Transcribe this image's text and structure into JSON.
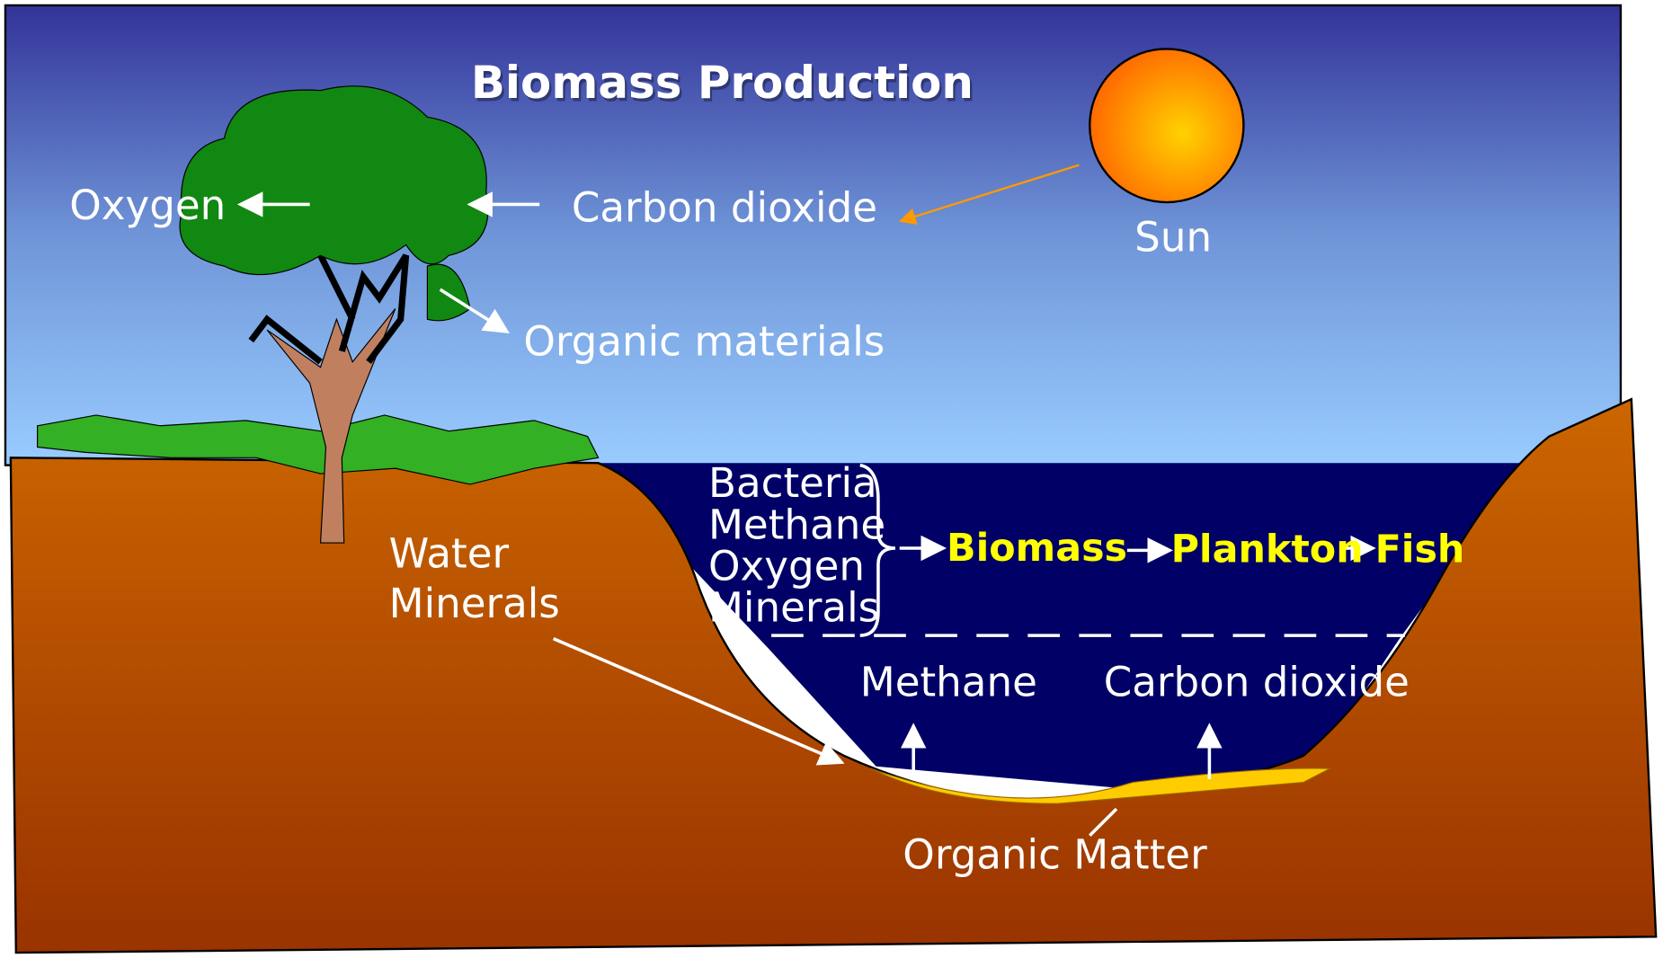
{
  "title": "Biomass Production",
  "atmosphere": {
    "oxygen": "Oxygen",
    "carbon_dioxide": "Carbon dioxide",
    "sun": "Sun",
    "organic_materials": "Organic materials"
  },
  "soil": {
    "inputs": [
      "Water",
      "Minerals"
    ]
  },
  "water": {
    "inputs": [
      "Bacteria",
      "Methane",
      "Oxygen",
      "Minerals"
    ],
    "food_chain": [
      "Biomass",
      "Plankton",
      "Fish"
    ],
    "gases": [
      "Methane",
      "Carbon dioxide"
    ],
    "sediment": "Organic Matter"
  }
}
